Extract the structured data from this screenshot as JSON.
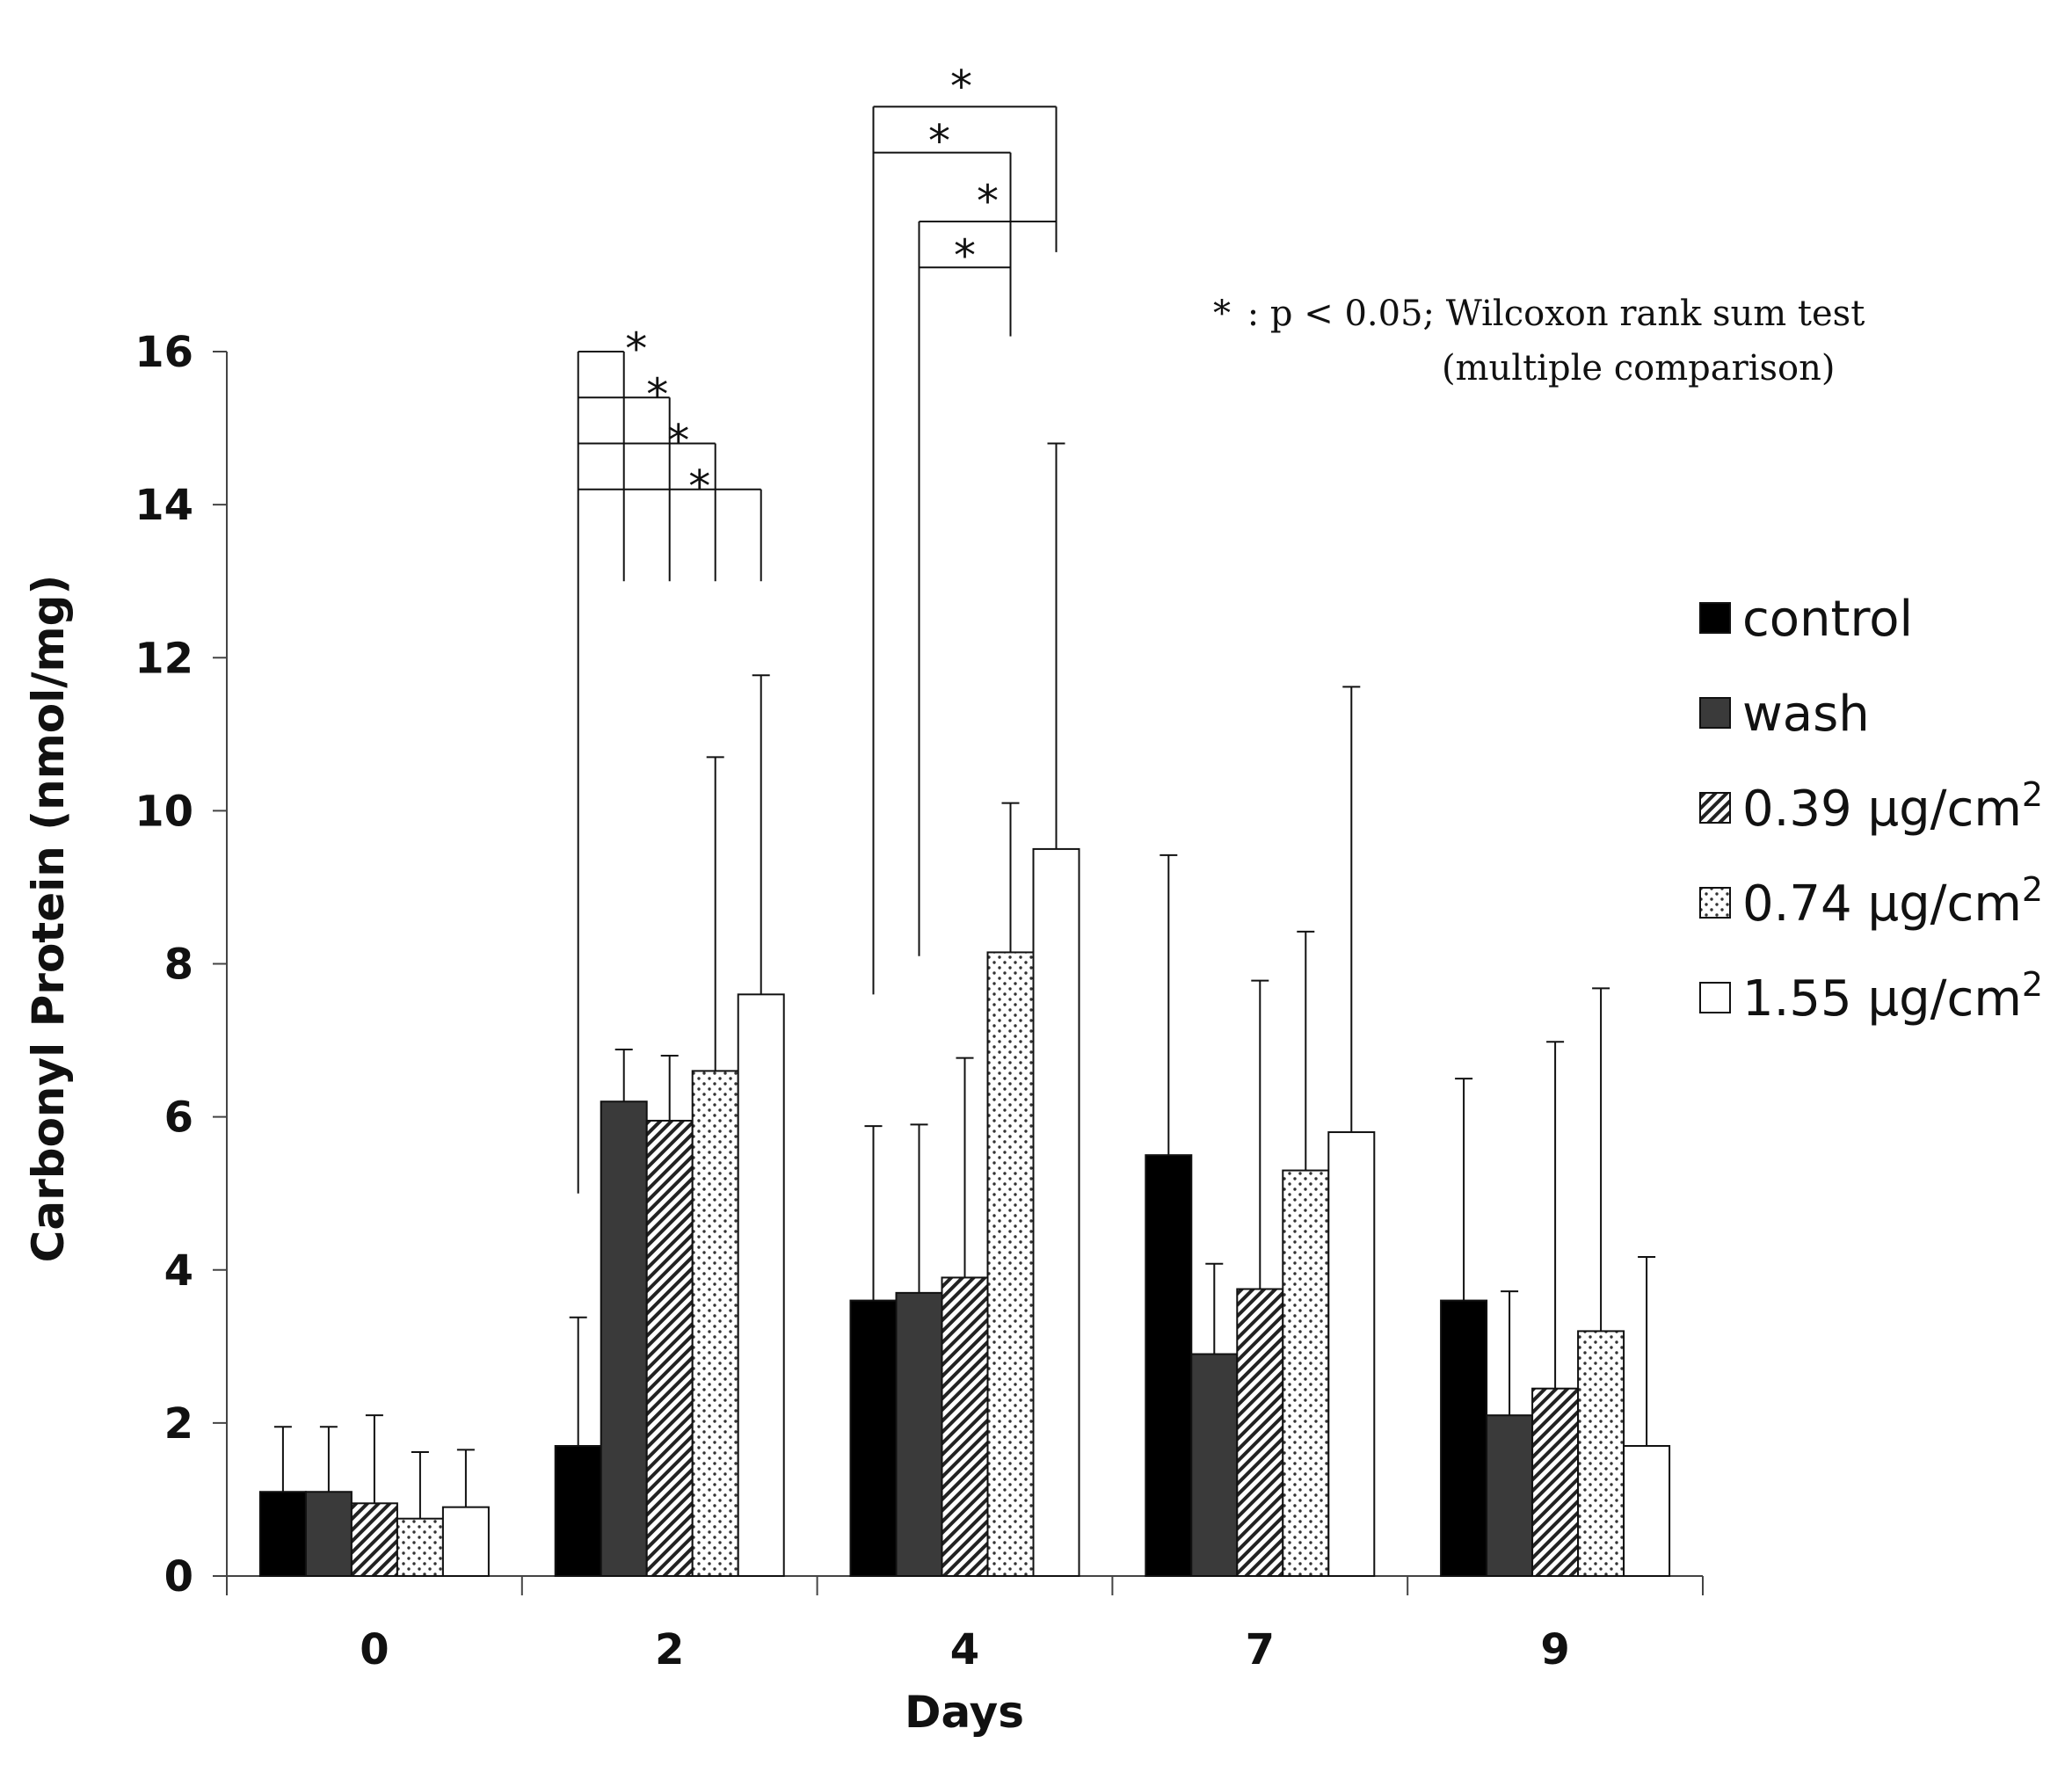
{
  "chart_data": {
    "type": "bar",
    "title": "",
    "xlabel": "Days",
    "ylabel": "Carbonyl Protein (nmol/mg)",
    "ylim": [
      0,
      16
    ],
    "yticks": [
      "0",
      "2",
      "4",
      "6",
      "8",
      "10",
      "12",
      "14",
      "16"
    ],
    "categories": [
      "0",
      "2",
      "4",
      "7",
      "9"
    ],
    "series": [
      {
        "name": "control",
        "fill": "solid-black",
        "values": [
          1.1,
          1.7,
          3.6,
          5.5,
          3.6
        ],
        "err_upper": [
          1.95,
          3.38,
          5.88,
          9.42,
          6.5
        ]
      },
      {
        "name": "wash",
        "fill": "solid-gray",
        "values": [
          1.1,
          6.2,
          3.7,
          2.9,
          2.1
        ],
        "err_upper": [
          1.95,
          6.88,
          5.9,
          4.08,
          3.72
        ]
      },
      {
        "name": "0.39 μg/cm",
        "sup": "2",
        "fill": "diagonal-hatch",
        "values": [
          0.95,
          5.95,
          3.9,
          3.75,
          2.45
        ],
        "err_upper": [
          2.1,
          6.8,
          6.77,
          7.78,
          6.98
        ]
      },
      {
        "name": "0.74 μg/cm",
        "sup": "2",
        "fill": "dotted",
        "values": [
          0.75,
          6.6,
          8.15,
          5.3,
          3.2
        ],
        "err_upper": [
          1.62,
          10.7,
          10.1,
          8.42,
          7.68
        ]
      },
      {
        "name": "1.55 μg/cm",
        "sup": "2",
        "fill": "white",
        "values": [
          0.9,
          7.6,
          9.5,
          5.8,
          1.7
        ],
        "err_upper": [
          1.65,
          11.77,
          14.8,
          11.62,
          4.17
        ]
      }
    ],
    "significance_marker": "*",
    "significance_note": ": p < 0.05; Wilcoxon rank sum test",
    "significance_note_line2": "(multiple comparison)",
    "colors": {
      "control": "#000000",
      "wash": "#3a3a3a",
      "axis": "#444444",
      "ink": "#111111"
    }
  }
}
